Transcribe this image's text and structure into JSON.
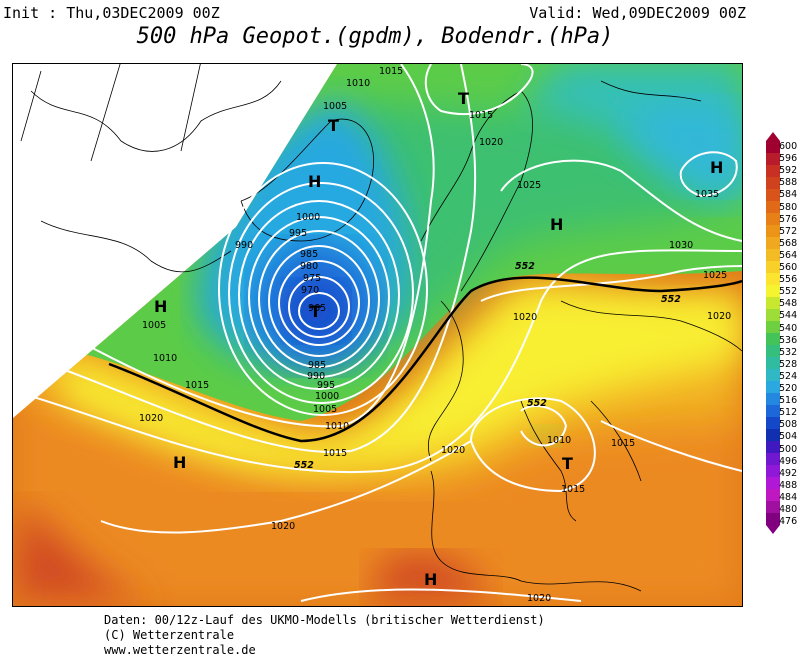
{
  "header": {
    "init": "Init : Thu,03DEC2009 00Z",
    "valid": "Valid: Wed,09DEC2009 00Z",
    "title": "500 hPa Geopot.(gpdm), Bodendr.(hPa)"
  },
  "footer": {
    "line1": "Daten: 00/12z-Lauf des UKMO-Modells (britischer Wetterdienst)",
    "line2": "(C) Wetterzentrale",
    "line3": "www.wetterzentrale.de"
  },
  "colorbar": {
    "labels": [
      "600",
      "596",
      "592",
      "588",
      "584",
      "580",
      "576",
      "572",
      "568",
      "564",
      "560",
      "556",
      "552",
      "548",
      "544",
      "540",
      "536",
      "532",
      "528",
      "524",
      "520",
      "516",
      "512",
      "508",
      "504",
      "500",
      "496",
      "492",
      "488",
      "484",
      "480",
      "476"
    ],
    "colors": [
      "#a00030",
      "#b81c2a",
      "#c83024",
      "#d0421e",
      "#d8541a",
      "#e06a18",
      "#e88018",
      "#ec9418",
      "#f0a820",
      "#f4bc24",
      "#f8d02a",
      "#fce430",
      "#f6f430",
      "#c8e830",
      "#9edc38",
      "#6ed040",
      "#44c458",
      "#34c07c",
      "#30bca0",
      "#30b8c4",
      "#2ca8e0",
      "#2488e0",
      "#1c68d8",
      "#1448c8",
      "#1030b0",
      "#4018c0",
      "#7018d0",
      "#9018d8",
      "#b018d8",
      "#c018c0",
      "#a010a0",
      "#800080"
    ]
  },
  "map": {
    "height_labels": [
      "552",
      "552",
      "552",
      "552"
    ],
    "pressure_labels": [
      "1015",
      "1010",
      "1005",
      "1015",
      "1020",
      "1025",
      "1030",
      "1035",
      "1025",
      "1000",
      "995",
      "990",
      "985",
      "980",
      "975",
      "970",
      "965",
      "985",
      "990",
      "995",
      "1000",
      "1005",
      "1010",
      "1005",
      "1010",
      "1015",
      "1020",
      "1015",
      "1020",
      "1020",
      "1010",
      "1015",
      "1015",
      "1020",
      "1020",
      "1020"
    ],
    "centers": [
      "T",
      "T",
      "H",
      "H",
      "H",
      "H",
      "H",
      "T",
      "T",
      "H",
      "H"
    ]
  }
}
